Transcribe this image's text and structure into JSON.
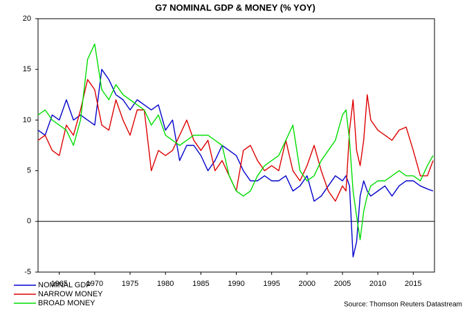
{
  "chart_data": {
    "type": "line",
    "title": "G7 NOMINAL GDP & MONEY (% YOY)",
    "source": "Source: Thomson Reuters Datastream",
    "x": [
      1962,
      1963,
      1964,
      1965,
      1966,
      1967,
      1968,
      1969,
      1970,
      1971,
      1972,
      1973,
      1974,
      1975,
      1976,
      1977,
      1978,
      1979,
      1980,
      1981,
      1982,
      1983,
      1984,
      1985,
      1986,
      1987,
      1988,
      1989,
      1990,
      1991,
      1992,
      1993,
      1994,
      1995,
      1996,
      1997,
      1998,
      1999,
      2000,
      2001,
      2002,
      2003,
      2004,
      2005,
      2005.5,
      2006,
      2006.5,
      2007,
      2007.5,
      2008,
      2008.5,
      2009,
      2010,
      2011,
      2012,
      2013,
      2014,
      2015,
      2016,
      2017,
      2017.8
    ],
    "series": [
      {
        "name": "NOMINAL GDP",
        "color": "#0000cc",
        "values": [
          9,
          8.5,
          10.5,
          10,
          12,
          10,
          10.5,
          10,
          9.5,
          15,
          14,
          12.5,
          12,
          11,
          12,
          11.5,
          11,
          11.5,
          9,
          10,
          6,
          7.5,
          7.5,
          6.5,
          5,
          6,
          7.5,
          7,
          6.5,
          5,
          4,
          4,
          4.5,
          4,
          4,
          4.5,
          3,
          3.5,
          4.5,
          2,
          2.5,
          3.5,
          4.5,
          4,
          4.5,
          3.5,
          -3.5,
          -2,
          2.5,
          4,
          3,
          2.5,
          3,
          3.5,
          2.5,
          3.5,
          4,
          4,
          3.5,
          3.2,
          3
        ]
      },
      {
        "name": "NARROW MONEY",
        "color": "#dd0000",
        "values": [
          8,
          8.5,
          7,
          6.5,
          9.5,
          8.5,
          11,
          14,
          13,
          9.5,
          9,
          12,
          10,
          8.5,
          11,
          11,
          5,
          7,
          6.5,
          7,
          8.5,
          10,
          8,
          7,
          8,
          5,
          6,
          4.5,
          3,
          7,
          7.5,
          6,
          5,
          5.5,
          5,
          8,
          5,
          4,
          5.5,
          7.5,
          5,
          3,
          2,
          3.5,
          3,
          9,
          12,
          7,
          5.5,
          8,
          12.5,
          10,
          9,
          8.5,
          8,
          9,
          9.3,
          7,
          4.5,
          4.5,
          6
        ]
      },
      {
        "name": "BROAD MONEY",
        "color": "#00dd00",
        "values": [
          10.5,
          11,
          10,
          9.5,
          9,
          7.5,
          10,
          16,
          17.5,
          13,
          12,
          13.5,
          12.5,
          12,
          11.5,
          11,
          9.5,
          10.5,
          8.5,
          8,
          7.5,
          8,
          8.5,
          8.5,
          8.5,
          8,
          7.5,
          4.5,
          3,
          2.5,
          3,
          4.5,
          5.5,
          6,
          6.5,
          8,
          9.5,
          5,
          4,
          4.5,
          6,
          7,
          8,
          10.5,
          11,
          8,
          3,
          0.5,
          -1.8,
          1,
          2.5,
          3.5,
          4,
          4,
          4.5,
          5,
          4.5,
          4.5,
          4,
          5.5,
          6.5
        ]
      }
    ],
    "xlim": [
      1962,
      2018
    ],
    "ylim": [
      -5,
      20
    ],
    "xticks": [
      1965,
      1970,
      1975,
      1980,
      1985,
      1990,
      1995,
      2000,
      2005,
      2010,
      2015
    ],
    "yticks": [
      -5,
      0,
      5,
      10,
      15,
      20
    ],
    "zero_line": true,
    "grid": false,
    "legend": "bottom-left"
  }
}
